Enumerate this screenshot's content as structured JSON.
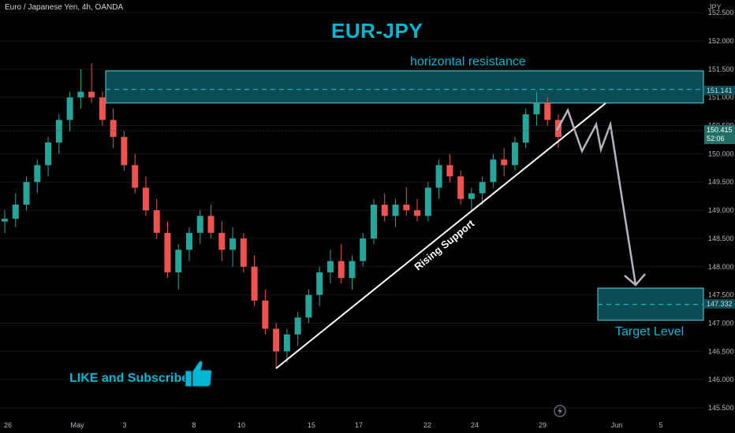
{
  "header": {
    "symbol": "Euro / Japanese Yen, 4h, OANDA",
    "unit": "JPY"
  },
  "chart_data": {
    "type": "candlestick",
    "title": "EUR-JPY",
    "ylim": [
      145.5,
      152.5
    ],
    "y_ticks": [
      "152.500",
      "152.000",
      "151.500",
      "151.000",
      "150.500",
      "150.000",
      "149.500",
      "149.000",
      "148.500",
      "148.000",
      "147.500",
      "147.000",
      "146.500",
      "146.000",
      "145.500"
    ],
    "x_ticks": [
      "26",
      "May",
      "3",
      "8",
      "10",
      "15",
      "17",
      "22",
      "24",
      "29",
      "Jun",
      "5"
    ],
    "current_price": "150.415",
    "countdown": "52:06",
    "resistance_zone": {
      "low": 150.9,
      "high": 151.47,
      "level": 151.141,
      "level_label": "151.141"
    },
    "target_zone": {
      "low": 147.05,
      "high": 147.62,
      "level": 147.332,
      "level_label": "147.332"
    },
    "candles": [
      [
        148.8,
        149.0,
        148.6,
        148.85
      ],
      [
        148.85,
        149.3,
        148.7,
        149.1
      ],
      [
        149.1,
        149.6,
        149.0,
        149.5
      ],
      [
        149.5,
        149.9,
        149.3,
        149.8
      ],
      [
        149.8,
        150.3,
        149.6,
        150.2
      ],
      [
        150.2,
        150.7,
        150.0,
        150.6
      ],
      [
        150.6,
        151.1,
        150.4,
        151.0
      ],
      [
        151.0,
        151.5,
        150.8,
        151.1
      ],
      [
        151.1,
        151.6,
        150.9,
        151.0
      ],
      [
        151.0,
        151.1,
        150.5,
        150.6
      ],
      [
        150.6,
        150.8,
        150.1,
        150.3
      ],
      [
        150.3,
        150.4,
        149.7,
        149.8
      ],
      [
        149.8,
        150.0,
        149.3,
        149.4
      ],
      [
        149.4,
        149.6,
        148.9,
        149.0
      ],
      [
        149.0,
        149.2,
        148.5,
        148.6
      ],
      [
        148.6,
        148.8,
        147.8,
        147.9
      ],
      [
        147.9,
        148.4,
        147.6,
        148.3
      ],
      [
        148.3,
        148.7,
        148.1,
        148.6
      ],
      [
        148.6,
        149.0,
        148.4,
        148.9
      ],
      [
        148.9,
        149.1,
        148.5,
        148.6
      ],
      [
        148.6,
        148.8,
        148.1,
        148.3
      ],
      [
        148.3,
        148.7,
        148.0,
        148.5
      ],
      [
        148.5,
        148.6,
        147.9,
        148.0
      ],
      [
        148.0,
        148.2,
        147.3,
        147.4
      ],
      [
        147.4,
        147.6,
        146.8,
        146.9
      ],
      [
        146.9,
        147.0,
        146.2,
        146.5
      ],
      [
        146.5,
        146.9,
        146.3,
        146.8
      ],
      [
        146.8,
        147.2,
        146.6,
        147.1
      ],
      [
        147.1,
        147.6,
        147.0,
        147.5
      ],
      [
        147.5,
        148.0,
        147.3,
        147.9
      ],
      [
        147.9,
        148.3,
        147.7,
        148.1
      ],
      [
        148.1,
        148.4,
        147.7,
        147.8
      ],
      [
        147.8,
        148.2,
        147.6,
        148.1
      ],
      [
        148.1,
        148.6,
        148.0,
        148.5
      ],
      [
        148.5,
        149.2,
        148.4,
        149.1
      ],
      [
        149.1,
        149.3,
        148.8,
        148.9
      ],
      [
        148.9,
        149.2,
        148.7,
        149.1
      ],
      [
        149.1,
        149.4,
        148.9,
        149.0
      ],
      [
        149.0,
        149.2,
        148.8,
        148.9
      ],
      [
        148.9,
        149.5,
        148.8,
        149.4
      ],
      [
        149.4,
        149.9,
        149.2,
        149.8
      ],
      [
        149.8,
        150.0,
        149.5,
        149.6
      ],
      [
        149.6,
        149.7,
        149.1,
        149.2
      ],
      [
        149.2,
        149.4,
        149.0,
        149.3
      ],
      [
        149.3,
        149.6,
        149.1,
        149.5
      ],
      [
        149.5,
        150.0,
        149.4,
        149.9
      ],
      [
        149.9,
        150.1,
        149.6,
        149.8
      ],
      [
        149.8,
        150.3,
        149.7,
        150.2
      ],
      [
        150.2,
        150.8,
        150.1,
        150.7
      ],
      [
        150.7,
        151.1,
        150.5,
        150.9
      ],
      [
        150.9,
        151.0,
        150.5,
        150.6
      ],
      [
        150.6,
        150.7,
        150.1,
        150.3
      ]
    ]
  },
  "annotations": {
    "resistance_label": "horizontal resistance",
    "support_label": "Rising Support",
    "target_label": "Target Level",
    "cta_label": "LIKE and Subscribe"
  },
  "colors": {
    "up": "#26a69a",
    "down": "#ef5350",
    "accent": "#00b7d4",
    "zone_fill": "#0b4d55",
    "zone_border": "#5fd3e0"
  },
  "icons": {
    "cta": "thumbs-up-icon",
    "replay": "lightning-icon"
  }
}
